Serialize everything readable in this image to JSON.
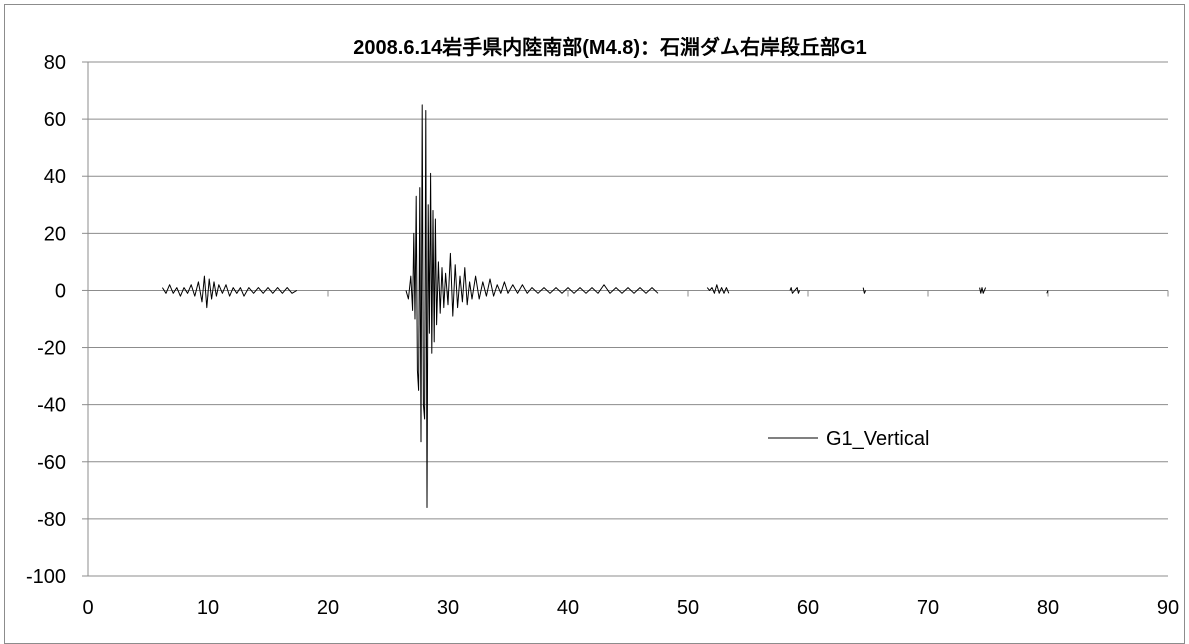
{
  "chart_data": {
    "type": "line",
    "title": "2008.6.14岩手県内陸南部(M4.8)：石淵ダム右岸段丘部G1",
    "xlabel": "",
    "ylabel": "",
    "xlim": [
      0,
      90
    ],
    "ylim": [
      -100,
      80
    ],
    "x_ticks": [
      "0",
      "10",
      "20",
      "30",
      "40",
      "50",
      "60",
      "70",
      "80",
      "90"
    ],
    "y_ticks": [
      "80",
      "60",
      "40",
      "20",
      "0",
      "-20",
      "-40",
      "-60",
      "-80",
      "-100"
    ],
    "grid": "horizontal",
    "legend_position": "right",
    "line_color": "#000000",
    "grid_color": "#8c8c8c",
    "series": [
      {
        "name": "G1_Vertical",
        "x": [
          6.2,
          6.5,
          6.8,
          7.1,
          7.4,
          7.7,
          8.0,
          8.3,
          8.6,
          8.9,
          9.2,
          9.5,
          9.7,
          9.9,
          10.1,
          10.3,
          10.5,
          10.7,
          10.9,
          11.2,
          11.5,
          11.8,
          12.1,
          12.4,
          12.7,
          13.0,
          13.4,
          13.8,
          14.2,
          14.6,
          15.0,
          15.4,
          15.8,
          16.2,
          16.6,
          17.0,
          17.4,
          26.5,
          26.7,
          26.9,
          27.05,
          27.15,
          27.25,
          27.35,
          27.45,
          27.55,
          27.65,
          27.75,
          27.85,
          27.95,
          28.05,
          28.15,
          28.25,
          28.35,
          28.45,
          28.55,
          28.65,
          28.75,
          28.85,
          28.95,
          29.05,
          29.2,
          29.35,
          29.5,
          29.65,
          29.8,
          30.0,
          30.2,
          30.4,
          30.6,
          30.8,
          31.0,
          31.2,
          31.4,
          31.6,
          31.8,
          32.0,
          32.3,
          32.6,
          32.9,
          33.2,
          33.5,
          33.8,
          34.1,
          34.4,
          34.7,
          35.0,
          35.4,
          35.8,
          36.2,
          36.6,
          37.0,
          37.5,
          38.0,
          38.5,
          39.0,
          39.5,
          40.0,
          40.5,
          41.0,
          41.5,
          42.0,
          42.5,
          43.0,
          43.5,
          44.0,
          44.5,
          45.0,
          45.5,
          46.0,
          46.5,
          47.0,
          47.5,
          51.6,
          51.8,
          52.0,
          52.2,
          52.4,
          52.6,
          52.8,
          53.0,
          53.2,
          53.4,
          58.5,
          58.6,
          58.7,
          59.1,
          59.2,
          59.3,
          64.6,
          64.7,
          64.8,
          74.3,
          74.4,
          74.5,
          74.6,
          74.7,
          74.8,
          79.9,
          80.0
        ],
        "y": [
          1,
          -1,
          2,
          -1,
          1,
          -2,
          1,
          -1,
          2,
          -2,
          3,
          -4,
          5,
          -6,
          4,
          -3,
          3,
          -2,
          2,
          -1,
          2,
          -2,
          1,
          -1,
          1,
          -2,
          1,
          -1,
          1,
          -1,
          1,
          -1,
          1,
          -1,
          1,
          -1,
          0,
          0,
          -3,
          5,
          -7,
          20,
          -10,
          33,
          -28,
          -35,
          36,
          -53,
          65,
          -40,
          -45,
          63,
          -76,
          30,
          -15,
          41,
          -22,
          28,
          -18,
          25,
          -12,
          10,
          -8,
          8,
          -6,
          6,
          -5,
          13,
          -9,
          9,
          -6,
          5,
          -4,
          8,
          -5,
          3,
          -3,
          5,
          -3,
          3,
          -2,
          4,
          -2,
          2,
          -1,
          3,
          -1,
          2,
          -1,
          2,
          -1,
          1,
          -1,
          1,
          -1,
          1,
          -1,
          1,
          -1,
          1,
          -1,
          1,
          -1,
          2,
          -1,
          1,
          -1,
          1,
          -1,
          1,
          -1,
          1,
          -1,
          1,
          0,
          1,
          -1,
          2,
          -1,
          1,
          -1,
          1,
          -1,
          0,
          1,
          -1,
          1,
          -1,
          0,
          1,
          -1,
          0,
          1,
          -1,
          1,
          -1,
          0,
          1,
          -1,
          0
        ]
      }
    ]
  }
}
